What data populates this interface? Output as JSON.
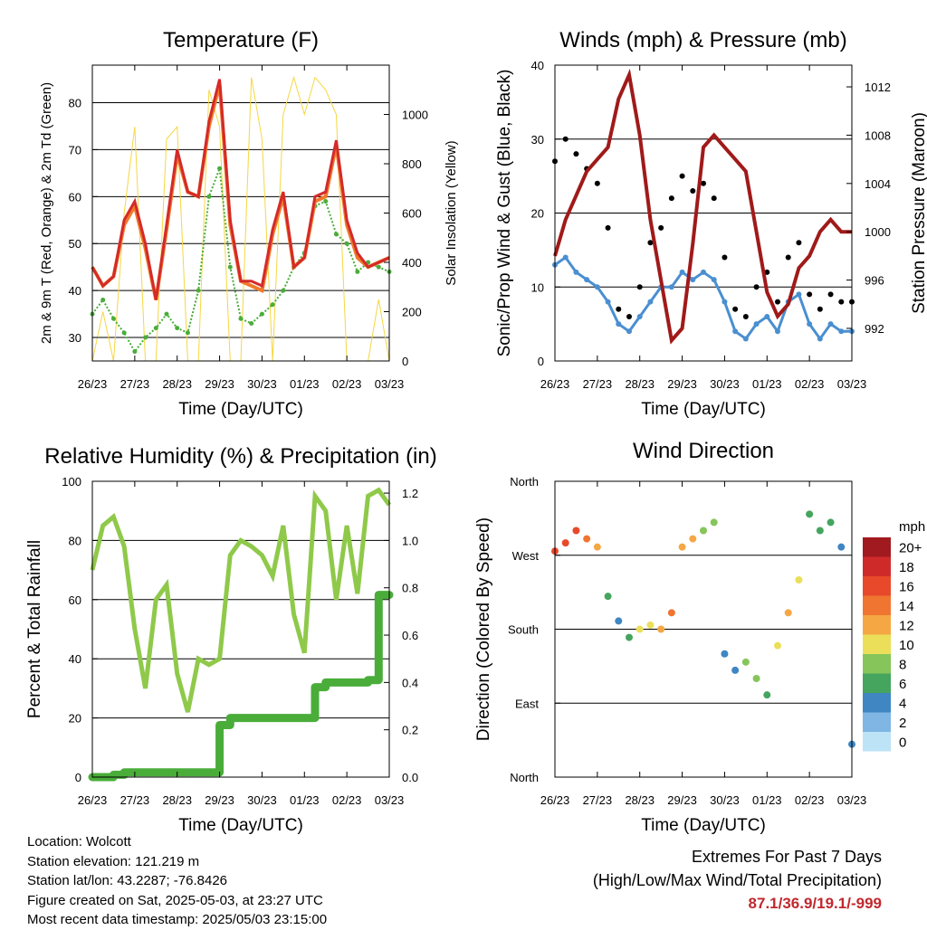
{
  "info": {
    "location": "Location: Wolcott",
    "elevation": "Station elevation: 121.219 m",
    "latlon": "Station lat/lon: 43.2287; -76.8426",
    "created": "Figure created on Sat, 2025-05-03, at 23:27 UTC",
    "recent": "Most recent data timestamp: 2025/05/03 23:15:00"
  },
  "extremes": {
    "title": "Extremes For Past 7 Days",
    "subtitle": "(High/Low/Max Wind/Total Precipitation)",
    "values": "87.1/36.9/19.1/-999",
    "color": "#c0282d"
  },
  "chart_data": [
    {
      "type": "line",
      "title": "Temperature (F)",
      "xlabel": "Time (Day/UTC)",
      "ylabel": "2m & 9m T (Red, Orange) & 2m Td (Green)",
      "y2label": "Solar Insolation (Yellow)",
      "categories": [
        "26/23",
        "27/23",
        "28/23",
        "29/23",
        "30/23",
        "01/23",
        "02/23",
        "03/23"
      ],
      "ylim": [
        25,
        88
      ],
      "yticks": [
        30,
        40,
        50,
        60,
        70,
        80
      ],
      "y2lim": [
        0,
        1200
      ],
      "y2ticks": [
        0,
        200,
        400,
        600,
        800,
        1000
      ],
      "x": [
        0,
        0.25,
        0.5,
        0.75,
        1.0,
        1.25,
        1.5,
        1.75,
        2.0,
        2.25,
        2.5,
        2.75,
        3.0,
        3.25,
        3.5,
        3.75,
        4.0,
        4.25,
        4.5,
        4.75,
        5.0,
        5.25,
        5.5,
        5.75,
        6.0,
        6.25,
        6.5,
        6.75,
        7.0
      ],
      "series": [
        {
          "name": "2m T",
          "color": "#d42a2a",
          "values": [
            45,
            41,
            43,
            55,
            59,
            50,
            38,
            54,
            70,
            61,
            60,
            76,
            85,
            55,
            42,
            42,
            41,
            53,
            61,
            45,
            47,
            60,
            61,
            72,
            55,
            48,
            45,
            46,
            47
          ]
        },
        {
          "name": "9m T",
          "color": "#f07a2a",
          "values": [
            45,
            41,
            43,
            54,
            58,
            49,
            38,
            53,
            69,
            61,
            60,
            75,
            84,
            54,
            42,
            41,
            40,
            52,
            60,
            45,
            47,
            59,
            60,
            71,
            54,
            47,
            45,
            46,
            47
          ]
        },
        {
          "name": "2m Td",
          "color": "#4aad3a",
          "values": [
            35,
            38,
            34,
            31,
            27,
            30,
            32,
            35,
            32,
            31,
            40,
            60,
            66,
            45,
            34,
            33,
            35,
            37,
            40,
            45,
            48,
            58,
            59,
            52,
            50,
            44,
            46,
            45,
            44
          ]
        },
        {
          "name": "Solar Insolation",
          "color": "#f5d742",
          "values": [
            0,
            200,
            0,
            600,
            950,
            0,
            0,
            900,
            950,
            0,
            0,
            1100,
            950,
            0,
            0,
            1150,
            900,
            0,
            1000,
            1150,
            1000,
            1150,
            1100,
            1000,
            0,
            0,
            0,
            250,
            0
          ]
        }
      ]
    },
    {
      "type": "scatter",
      "title": "Winds (mph) & Pressure (mb)",
      "xlabel": "Time (Day/UTC)",
      "ylabel": "Sonic/Prop Wind & Gust (Blue, Black)",
      "y2label": "Station Pressure (Maroon)",
      "categories": [
        "26/23",
        "27/23",
        "28/23",
        "29/23",
        "30/23",
        "01/23",
        "02/23",
        "03/23"
      ],
      "ylim": [
        0,
        40
      ],
      "yticks": [
        0,
        10,
        20,
        30,
        40
      ],
      "y2lim": [
        989.3,
        1013.8
      ],
      "y2ticks": [
        992,
        996,
        1000,
        1004,
        1008,
        1012
      ],
      "x": [
        0,
        0.25,
        0.5,
        0.75,
        1.0,
        1.25,
        1.5,
        1.75,
        2.0,
        2.25,
        2.5,
        2.75,
        3.0,
        3.25,
        3.5,
        3.75,
        4.0,
        4.25,
        4.5,
        4.75,
        5.0,
        5.25,
        5.5,
        5.75,
        6.0,
        6.25,
        6.5,
        6.75,
        7.0
      ],
      "series": [
        {
          "name": "Wind",
          "color": "#4a8fd0",
          "values": [
            13,
            14,
            12,
            11,
            10,
            8,
            5,
            4,
            6,
            8,
            10,
            10,
            12,
            11,
            12,
            11,
            8,
            4,
            3,
            5,
            6,
            4,
            8,
            9,
            5,
            3,
            5,
            4,
            4
          ]
        },
        {
          "name": "Gust",
          "color": "#000000",
          "values": [
            27,
            30,
            28,
            26,
            24,
            18,
            7,
            6,
            10,
            16,
            18,
            22,
            25,
            23,
            24,
            22,
            14,
            7,
            6,
            10,
            12,
            8,
            14,
            16,
            9,
            7,
            9,
            8,
            8
          ]
        },
        {
          "name": "Station Pressure",
          "color": "#a01a1a",
          "values": [
            998,
            1001,
            1003,
            1005,
            1006,
            1007,
            1011,
            1013,
            1008,
            1001,
            996,
            991,
            992,
            999,
            1007,
            1008,
            1007,
            1006,
            1005,
            1000,
            995,
            993,
            994,
            997,
            998,
            1000,
            1001,
            1000,
            1000
          ]
        }
      ]
    },
    {
      "type": "line",
      "title": "Relative Humidity (%) & Precipitation (in)",
      "xlabel": "Time (Day/UTC)",
      "ylabel": "Percent & Total Rainfall",
      "categories": [
        "26/23",
        "27/23",
        "28/23",
        "29/23",
        "30/23",
        "01/23",
        "02/23",
        "03/23"
      ],
      "ylim": [
        0,
        100
      ],
      "yticks": [
        0,
        20,
        40,
        60,
        80,
        100
      ],
      "y2lim": [
        0,
        1.25
      ],
      "y2ticks": [
        0.0,
        0.2,
        0.4,
        0.6,
        0.8,
        1.0,
        1.2
      ],
      "x": [
        0,
        0.25,
        0.5,
        0.75,
        1.0,
        1.25,
        1.5,
        1.75,
        2.0,
        2.25,
        2.5,
        2.75,
        3.0,
        3.25,
        3.5,
        3.75,
        4.0,
        4.25,
        4.5,
        4.75,
        5.0,
        5.25,
        5.5,
        5.75,
        6.0,
        6.25,
        6.5,
        6.75,
        7.0
      ],
      "series": [
        {
          "name": "Relative Humidity",
          "color": "#8fc94a",
          "values": [
            70,
            85,
            88,
            78,
            50,
            30,
            60,
            65,
            35,
            22,
            40,
            38,
            40,
            75,
            80,
            78,
            75,
            68,
            85,
            55,
            42,
            95,
            90,
            60,
            85,
            62,
            95,
            97,
            92
          ]
        },
        {
          "name": "Total Precipitation",
          "color": "#4aad3a",
          "values": [
            0,
            0,
            0.01,
            0.02,
            0.02,
            0.02,
            0.02,
            0.02,
            0.02,
            0.02,
            0.02,
            0.02,
            0.22,
            0.25,
            0.25,
            0.25,
            0.25,
            0.25,
            0.25,
            0.25,
            0.25,
            0.38,
            0.4,
            0.4,
            0.4,
            0.4,
            0.41,
            0.77,
            0.77
          ]
        }
      ]
    },
    {
      "type": "scatter",
      "title": "Wind Direction",
      "xlabel": "Time (Day/UTC)",
      "ylabel": "Direction (Colored By Speed)",
      "categories": [
        "26/23",
        "27/23",
        "28/23",
        "29/23",
        "30/23",
        "01/23",
        "02/23",
        "03/23"
      ],
      "ylim": [
        0,
        360
      ],
      "yticks": [
        "North",
        "East",
        "South",
        "West",
        "North"
      ],
      "colorbar": {
        "title": "mph",
        "labels": [
          "20+",
          "18",
          "16",
          "14",
          "12",
          "10",
          "8",
          "6",
          "4",
          "2",
          "0"
        ],
        "colors": [
          "#a11a1f",
          "#cf2a2a",
          "#e8492a",
          "#f07530",
          "#f5a744",
          "#ebdf5a",
          "#86c55a",
          "#45a55e",
          "#3f86c2",
          "#7fb6e3",
          "#bde3f7"
        ]
      },
      "x": [
        0,
        0.25,
        0.5,
        0.75,
        1.0,
        1.25,
        1.5,
        1.75,
        2.0,
        2.25,
        2.5,
        2.75,
        3.0,
        3.25,
        3.5,
        3.75,
        4.0,
        4.25,
        4.5,
        4.75,
        5.0,
        5.25,
        5.5,
        5.75,
        6.0,
        6.25,
        6.5,
        6.75,
        7.0
      ],
      "series": [
        {
          "name": "Direction",
          "values": [
            275,
            285,
            300,
            290,
            280,
            220,
            190,
            170,
            180,
            185,
            180,
            200,
            280,
            290,
            300,
            310,
            150,
            130,
            140,
            120,
            100,
            160,
            200,
            240,
            320,
            300,
            310,
            280,
            40
          ]
        },
        {
          "name": "Speed",
          "values": [
            15,
            16,
            15,
            13,
            11,
            5,
            4,
            6,
            9,
            10,
            11,
            13,
            12,
            11,
            8,
            7,
            3,
            4,
            8,
            7,
            5,
            10,
            12,
            10,
            6,
            5,
            6,
            4,
            3
          ]
        }
      ]
    }
  ]
}
